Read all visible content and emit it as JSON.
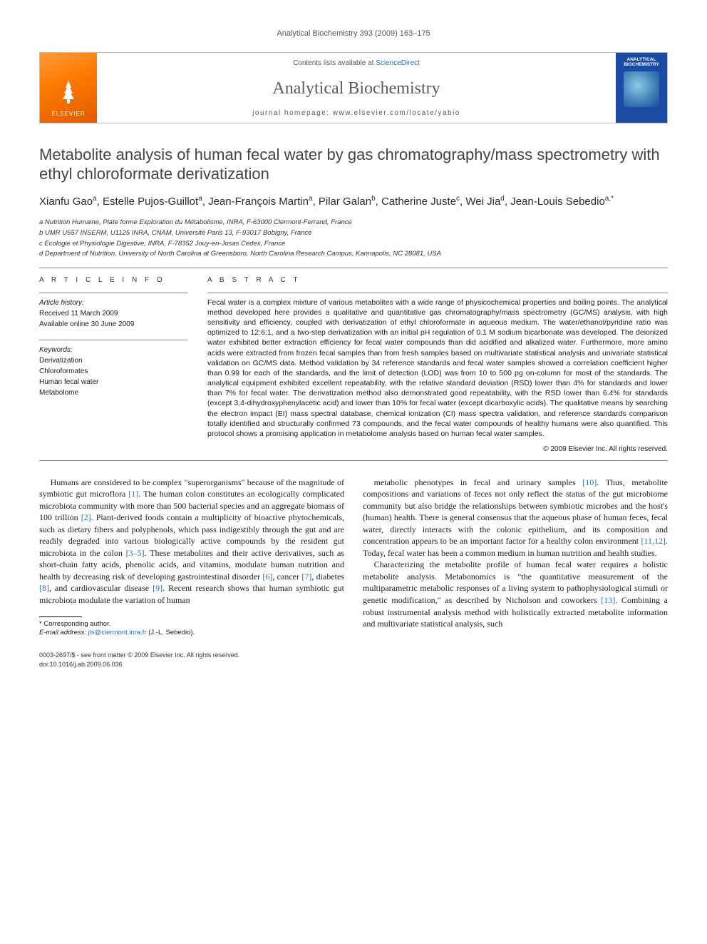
{
  "running_head": "Analytical Biochemistry 393 (2009) 163–175",
  "header": {
    "contents_prefix": "Contents lists available at ",
    "contents_link": "ScienceDirect",
    "journal": "Analytical Biochemistry",
    "homepage_prefix": "journal homepage: ",
    "homepage": "www.elsevier.com/locate/yabio",
    "publisher": "ELSEVIER",
    "cover_title": "ANALYTICAL BIOCHEMISTRY"
  },
  "title": "Metabolite analysis of human fecal water by gas chromatography/mass spectrometry with ethyl chloroformate derivatization",
  "authors_html": "Xianfu Gao<sup>a</sup>, Estelle Pujos-Guillot<sup>a</sup>, Jean-François Martin<sup>a</sup>, Pilar Galan<sup>b</sup>, Catherine Juste<sup>c</sup>, Wei Jia<sup>d</sup>, Jean-Louis Sebedio<sup>a,*</sup>",
  "affiliations": [
    "a Nutrition Humaine, Plate forme Exploration du Métabolisme, INRA, F-63000 Clermont-Ferrand, France",
    "b UMR U557 INSERM, U1125 INRA, CNAM, Université Paris 13, F-93017 Bobigny, France",
    "c Ecologie et Physiologie Digestive, INRA, F-78352 Jouy-en-Josas Cedex, France",
    "d Department of Nutrition, University of North Carolina at Greensboro, North Carolina Research Campus, Kannapolis, NC 28081, USA"
  ],
  "info": {
    "heading": "A R T I C L E   I N F O",
    "history_label": "Article history:",
    "received": "Received 11 March 2009",
    "available": "Available online 30 June 2009",
    "keywords_label": "Keywords:",
    "keywords": [
      "Derivatization",
      "Chloroformates",
      "Human fecal water",
      "Metabolome"
    ]
  },
  "abstract": {
    "heading": "A B S T R A C T",
    "text": "Fecal water is a complex mixture of various metabolites with a wide range of physicochemical properties and boiling points. The analytical method developed here provides a qualitative and quantitative gas chromatography/mass spectrometry (GC/MS) analysis, with high sensitivity and efficiency, coupled with derivatization of ethyl chloroformate in aqueous medium. The water/ethanol/pyridine ratio was optimized to 12:6:1, and a two-step derivatization with an initial pH regulation of 0.1 M sodium bicarbonate was developed. The deionized water exhibited better extraction efficiency for fecal water compounds than did acidified and alkalized water. Furthermore, more amino acids were extracted from frozen fecal samples than from fresh samples based on multivariate statistical analysis and univariate statistical validation on GC/MS data. Method validation by 34 reference standards and fecal water samples showed a correlation coefficient higher than 0.99 for each of the standards, and the limit of detection (LOD) was from 10 to 500 pg on-column for most of the standards. The analytical equipment exhibited excellent repeatability, with the relative standard deviation (RSD) lower than 4% for standards and lower than 7% for fecal water. The derivatization method also demonstrated good repeatability, with the RSD lower than 6.4% for standards (except 3,4-dihydroxyphenylacetic acid) and lower than 10% for fecal water (except dicarboxylic acids). The qualitative means by searching the electron impact (EI) mass spectral database, chemical ionization (CI) mass spectra validation, and reference standards comparison totally identified and structurally confirmed 73 compounds, and the fecal water compounds of healthy humans were also quantified. This protocol shows a promising application in metabolome analysis based on human fecal water samples.",
    "copyright": "© 2009 Elsevier Inc. All rights reserved."
  },
  "body": {
    "p1": "Humans are considered to be complex \"superorganisms\" because of the magnitude of symbiotic gut microflora [1]. The human colon constitutes an ecologically complicated microbiota community with more than 500 bacterial species and an aggregate biomass of 100 trillion [2]. Plant-derived foods contain a multiplicity of bioactive phytochemicals, such as dietary fibers and polyphenols, which pass indigestibly through the gut and are readily degraded into various biologically active compounds by the resident gut microbiota in the colon [3–5]. These metabolites and their active derivatives, such as short-chain fatty acids, phenolic acids, and vitamins, modulate human nutrition and health by decreasing risk of developing gastrointestinal disorder [6], cancer [7], diabetes [8], and cardiovascular disease [9]. Recent research shows that human symbiotic gut microbiota modulate the variation of human",
    "p2": "metabolic phenotypes in fecal and urinary samples [10]. Thus, metabolite compositions and variations of feces not only reflect the status of the gut microbiome community but also bridge the relationships between symbiotic microbes and the host's (human) health. There is general consensus that the aqueous phase of human feces, fecal water, directly interacts with the colonic epithelium, and its composition and concentration appears to be an important factor for a healthy colon environment [11,12]. Today, fecal water has been a common medium in human nutrition and health studies.",
    "p3": "Characterizing the metabolite profile of human fecal water requires a holistic metabolite analysis. Metabonomics is \"the quantitative measurement of the multiparametric metabolic responses of a living system to pathophysiological stimuli or genetic modification,\" as described by Nicholson and coworkers [13]. Combining a robust instrumental analysis method with holistically extracted metabolite information and multivariate statistical analysis, such"
  },
  "footnote": {
    "corr": "* Corresponding author.",
    "email_label": "E-mail address: ",
    "email": "jls@clermont.inra.fr",
    "email_who": " (J.-L. Sebedio)."
  },
  "bottom": {
    "line1": "0003-2697/$ - see front matter © 2009 Elsevier Inc. All rights reserved.",
    "line2": "doi:10.1016/j.ab.2009.06.036"
  },
  "colors": {
    "link": "#2e6fb3",
    "elsevier_orange": "#ff7b00",
    "cover_blue": "#1a4aa3",
    "rule": "#888888",
    "text": "#1a1a1a"
  }
}
